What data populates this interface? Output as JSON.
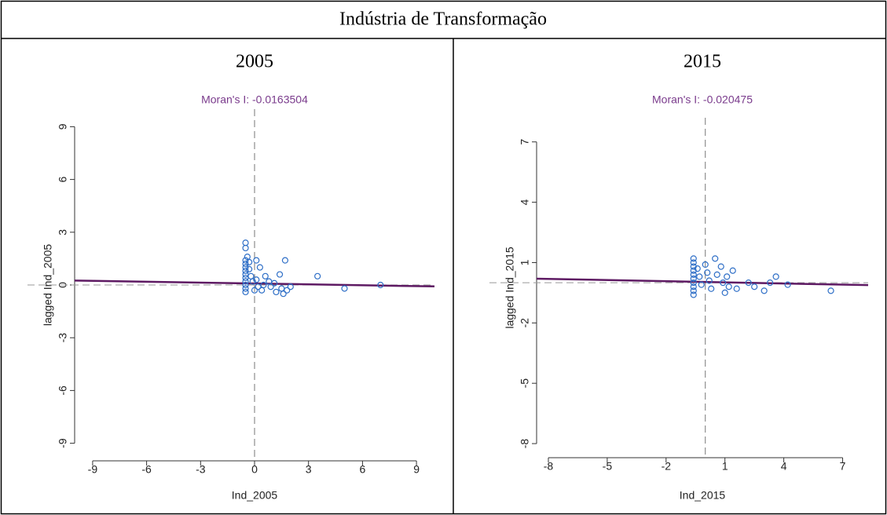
{
  "header": {
    "title": "Indústria de Transformação"
  },
  "chart_data": [
    {
      "type": "scatter",
      "title": "2005",
      "subtitle": "Moran's I: -0.0163504",
      "x_label": "Ind_2005",
      "y_label": "lagged Ind_2005",
      "xlim": [
        -10,
        10
      ],
      "ylim": [
        -10,
        10
      ],
      "xticks": [
        -9,
        -6,
        -3,
        0,
        3,
        6,
        9
      ],
      "yticks": [
        -9,
        -6,
        -3,
        0,
        3,
        6,
        9
      ],
      "color": "#2f6fc7",
      "fit_color": "#5e1a63",
      "title_color": "#7a3b8c",
      "vline": 0,
      "hline": 0,
      "fit": {
        "x": [
          -10,
          10
        ],
        "y": [
          0.25,
          -0.08
        ]
      },
      "x": [
        -0.5,
        -0.5,
        -0.4,
        -0.5,
        -0.3,
        -0.5,
        -0.5,
        -0.5,
        -0.5,
        -0.5,
        -0.5,
        -0.5,
        -0.5,
        -0.5,
        -0.3,
        -0.2,
        -0.1,
        0.1,
        0.3,
        0.1,
        0.2,
        0.4,
        0.6,
        0.8,
        0.9,
        1.1,
        1.2,
        1.4,
        1.5,
        1.7,
        1.6,
        1.8,
        2.0,
        0.5,
        0.0,
        3.5,
        5.0,
        7.0
      ],
      "values": [
        2.4,
        2.1,
        1.6,
        1.4,
        1.3,
        1.2,
        1.0,
        0.8,
        0.6,
        0.4,
        0.2,
        0.0,
        -0.2,
        -0.4,
        0.9,
        0.5,
        0.2,
        1.4,
        1.0,
        0.3,
        -0.1,
        -0.3,
        0.5,
        0.2,
        -0.1,
        0.1,
        -0.4,
        0.6,
        -0.2,
        1.4,
        -0.5,
        -0.3,
        -0.1,
        0.0,
        -0.3,
        0.5,
        -0.2,
        0.0
      ]
    },
    {
      "type": "scatter",
      "title": "2015",
      "subtitle": "Moran's I: -0.020475",
      "x_label": "Ind_2015",
      "y_label": "lagged Ind_2015",
      "xlim": [
        -8.6,
        8.3
      ],
      "ylim": [
        -8.7,
        8.2
      ],
      "xticks": [
        -8,
        -5,
        -2,
        1,
        4,
        7
      ],
      "yticks": [
        -8,
        -5,
        -2,
        1,
        4,
        7
      ],
      "color": "#2f6fc7",
      "fit_color": "#5e1a63",
      "title_color": "#7a3b8c",
      "vline": 0,
      "hline": 0,
      "fit": {
        "x": [
          -8.6,
          8.3
        ],
        "y": [
          0.2,
          -0.12
        ]
      },
      "x": [
        -0.6,
        -0.6,
        -0.6,
        -0.6,
        -0.6,
        -0.6,
        -0.6,
        -0.6,
        -0.6,
        -0.6,
        -0.4,
        -0.3,
        -0.2,
        0,
        0.1,
        0.2,
        0.3,
        0.5,
        0.6,
        0.8,
        0.9,
        1.0,
        1.1,
        1.2,
        1.4,
        1.6,
        2.2,
        2.5,
        3.0,
        3.3,
        3.6,
        4.2,
        6.4
      ],
      "values": [
        1.2,
        1.0,
        0.8,
        0.6,
        0.4,
        0.2,
        0.0,
        -0.2,
        -0.4,
        -0.6,
        0.7,
        0.3,
        -0.1,
        0.9,
        0.5,
        0.1,
        -0.3,
        1.2,
        0.4,
        0.8,
        0.0,
        -0.5,
        0.3,
        -0.2,
        0.6,
        -0.3,
        0.0,
        -0.2,
        -0.4,
        0.0,
        0.3,
        -0.1,
        -0.4
      ]
    }
  ]
}
